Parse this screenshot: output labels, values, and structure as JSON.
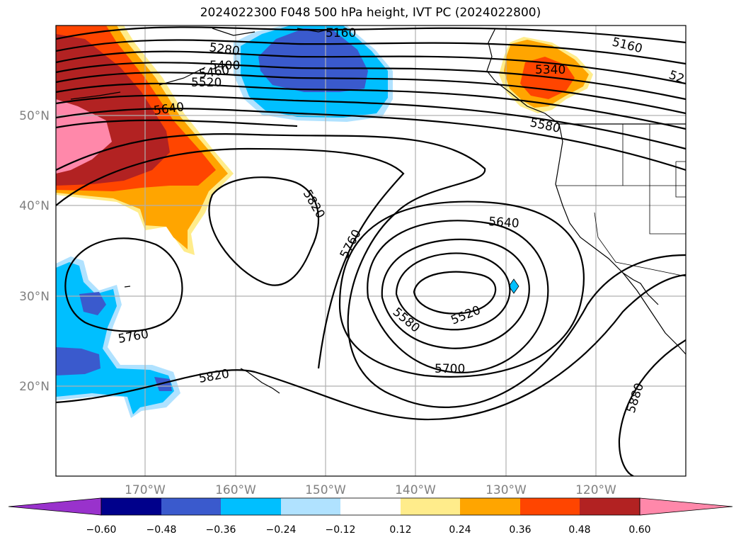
{
  "title": "2024022300 F048 500 hPa height, IVT PC (2024022800)",
  "map": {
    "lon_labels": [
      {
        "text": "170°W",
        "lon": -170
      },
      {
        "text": "160°W",
        "lon": -160
      },
      {
        "text": "150°W",
        "lon": -150
      },
      {
        "text": "140°W",
        "lon": -140
      },
      {
        "text": "130°W",
        "lon": -130
      },
      {
        "text": "120°W",
        "lon": -120
      }
    ],
    "lat_labels": [
      {
        "text": "50°N",
        "lat": 50
      },
      {
        "text": "40°N",
        "lat": 40
      },
      {
        "text": "30°N",
        "lat": 30
      },
      {
        "text": "20°N",
        "lat": 20
      }
    ],
    "contour_labels": [
      "5160",
      "5280",
      "5400",
      "5460",
      "5520",
      "5640",
      "5160",
      "52",
      "5340",
      "5580",
      "5820",
      "5760",
      "5640",
      "5760",
      "5580",
      "5520",
      "5700",
      "5820",
      "5880"
    ],
    "colors": {
      "land_line": "#000000",
      "grid": "#b0b0b0"
    }
  },
  "colorbar": {
    "colors": [
      "#9932cc",
      "#00008b",
      "#3a5acd",
      "#00bfff",
      "#b0e2ff",
      "#ffffff",
      "#ffec8b",
      "#ffa500",
      "#ff4500",
      "#b22222",
      "#ff88aa"
    ],
    "ticks": [
      "−0.60",
      "−0.48",
      "−0.36",
      "−0.24",
      "−0.12",
      "0.12",
      "0.24",
      "0.36",
      "0.48",
      "0.60"
    ]
  }
}
